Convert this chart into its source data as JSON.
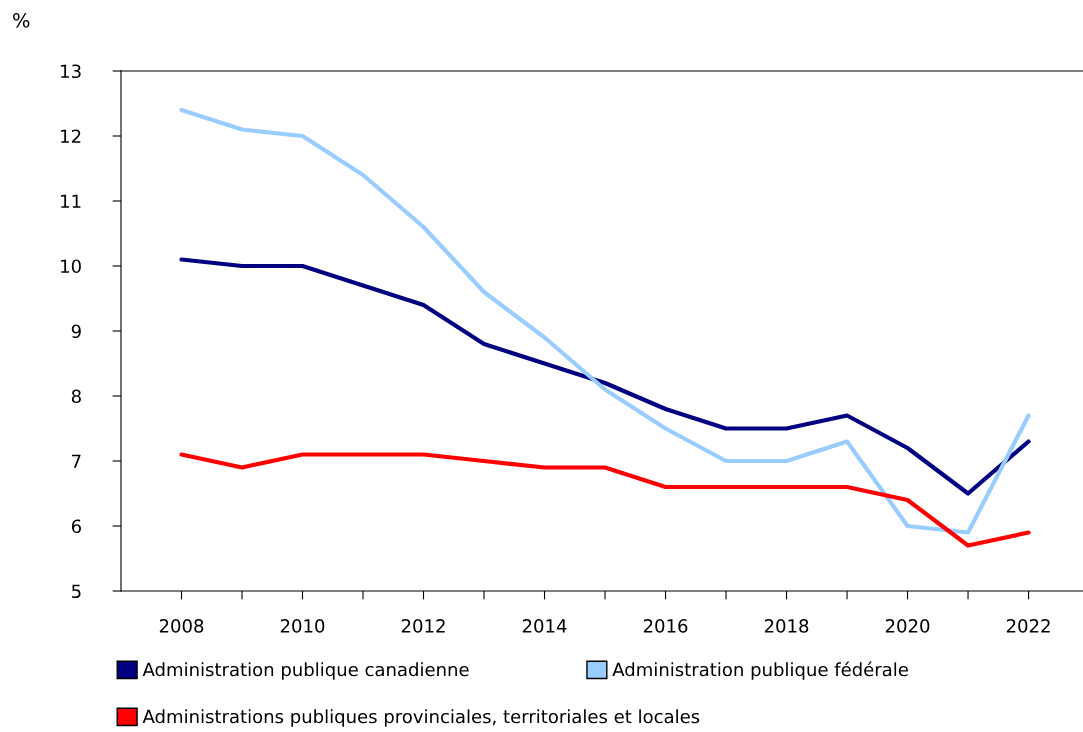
{
  "chart_data": {
    "type": "line",
    "ylabel": "%",
    "x": [
      2008,
      2009,
      2010,
      2011,
      2012,
      2013,
      2014,
      2015,
      2016,
      2017,
      2018,
      2019,
      2020,
      2021,
      2022
    ],
    "series": [
      {
        "name": "Administration publique canadienne",
        "color": "#000080",
        "values": [
          10.1,
          10.0,
          10.0,
          9.7,
          9.4,
          8.8,
          8.5,
          8.2,
          7.8,
          7.5,
          7.5,
          7.7,
          7.2,
          6.5,
          7.3
        ]
      },
      {
        "name": "Administration publique fédérale",
        "color": "#99ccff",
        "values": [
          12.4,
          12.1,
          12.0,
          11.4,
          10.6,
          9.6,
          8.9,
          8.1,
          7.5,
          7.0,
          7.0,
          7.3,
          6.0,
          5.9,
          7.7
        ]
      },
      {
        "name": "Administrations publiques provinciales, territoriales et locales",
        "color": "#ff0000",
        "values": [
          7.1,
          6.9,
          7.1,
          7.1,
          7.1,
          7.0,
          6.9,
          6.9,
          6.6,
          6.6,
          6.6,
          6.6,
          6.4,
          5.7,
          5.9
        ]
      }
    ],
    "xlim": [
      2007,
      2022.9
    ],
    "xticks": [
      2008,
      {
        "value": 2009,
        "label": null
      },
      2010,
      {
        "value": 2011,
        "label": null
      },
      2012,
      {
        "value": 2013,
        "label": null
      },
      2014,
      {
        "value": 2015,
        "label": null
      },
      2016,
      {
        "value": 2017,
        "label": null
      },
      2018,
      {
        "value": 2019,
        "label": null
      },
      2020,
      {
        "value": 2021,
        "label": null
      },
      2022
    ],
    "ylim": [
      5,
      13
    ],
    "yticks": [
      5,
      6,
      7,
      8,
      9,
      10,
      11,
      12,
      13
    ],
    "grid": false,
    "legend": "bottom",
    "marker": "none",
    "line_style": "solid"
  }
}
